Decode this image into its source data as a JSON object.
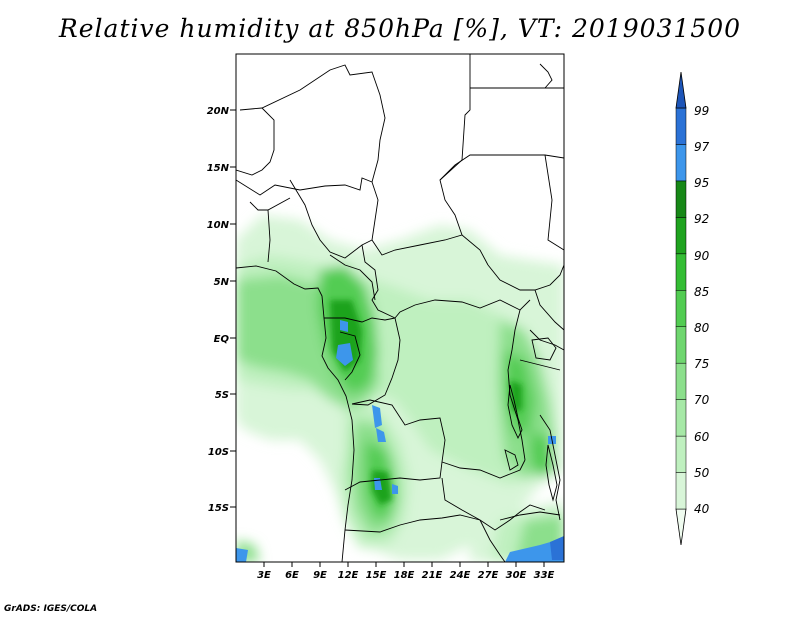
{
  "title": "Relative humidity at 850hPa [%], VT: 2019031500",
  "credit": "GrADS: IGES/COLA",
  "map": {
    "lat_labels": [
      "20N",
      "15N",
      "10N",
      "5N",
      "EQ",
      "5S",
      "10S",
      "15S"
    ],
    "lon_labels": [
      "3E",
      "6E",
      "9E",
      "12E",
      "15E",
      "18E",
      "21E",
      "24E",
      "27E",
      "30E",
      "33E"
    ]
  },
  "colorbar": {
    "labels": [
      "40",
      "50",
      "60",
      "70",
      "75",
      "80",
      "85",
      "90",
      "92",
      "95",
      "97",
      "99"
    ],
    "colors": [
      "#f0fcf0",
      "#d8f5d8",
      "#bff0bf",
      "#a6e8a6",
      "#8cdf8c",
      "#6fd66f",
      "#52cc52",
      "#34bd34",
      "#1fa31f",
      "#178817",
      "#3d96eb",
      "#2b72d6",
      "#1d55b8"
    ]
  }
}
